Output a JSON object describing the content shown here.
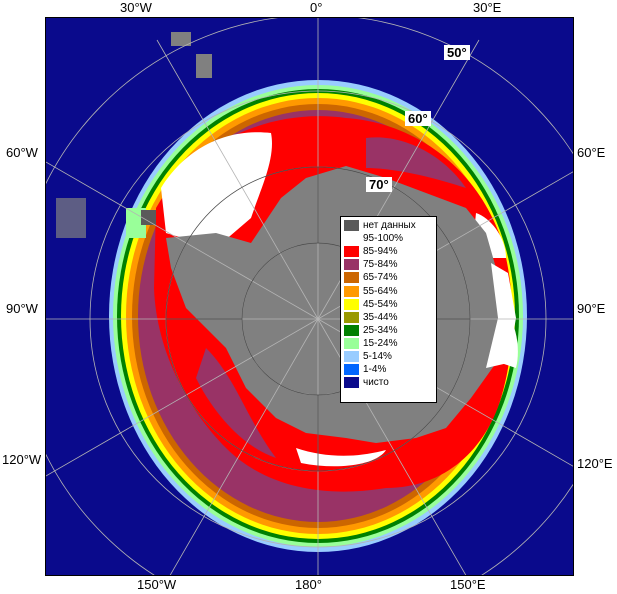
{
  "map": {
    "top_labels": [
      "30°W",
      "0°",
      "30°E"
    ],
    "bottom_labels": [
      "150°W",
      "180°",
      "150°E"
    ],
    "left_labels": [
      "60°W",
      "90°W",
      "120°W"
    ],
    "right_labels": [
      "60°E",
      "90°E",
      "120°E"
    ],
    "lat_labels": [
      "50°",
      "60°",
      "70°"
    ],
    "colors": {
      "open_water": "#0a0a8c",
      "land": "#808080",
      "graticule": "#b4b4b4"
    }
  },
  "legend": {
    "items": [
      {
        "label": "нет данных",
        "color": "#5a5a5a"
      },
      {
        "label": "95-100%",
        "color": "#ffffff"
      },
      {
        "label": "85-94%",
        "color": "#ff0000"
      },
      {
        "label": "75-84%",
        "color": "#993366"
      },
      {
        "label": "65-74%",
        "color": "#cc6600"
      },
      {
        "label": "55-64%",
        "color": "#ff9900"
      },
      {
        "label": "45-54%",
        "color": "#ffff00"
      },
      {
        "label": "35-44%",
        "color": "#999900"
      },
      {
        "label": "25-34%",
        "color": "#008000"
      },
      {
        "label": "15-24%",
        "color": "#99ff99"
      },
      {
        "label": "5-14%",
        "color": "#99ccff"
      },
      {
        "label": "1-4%",
        "color": "#0066ff"
      },
      {
        "label": "чисто",
        "color": "#0a0a8c"
      }
    ]
  }
}
